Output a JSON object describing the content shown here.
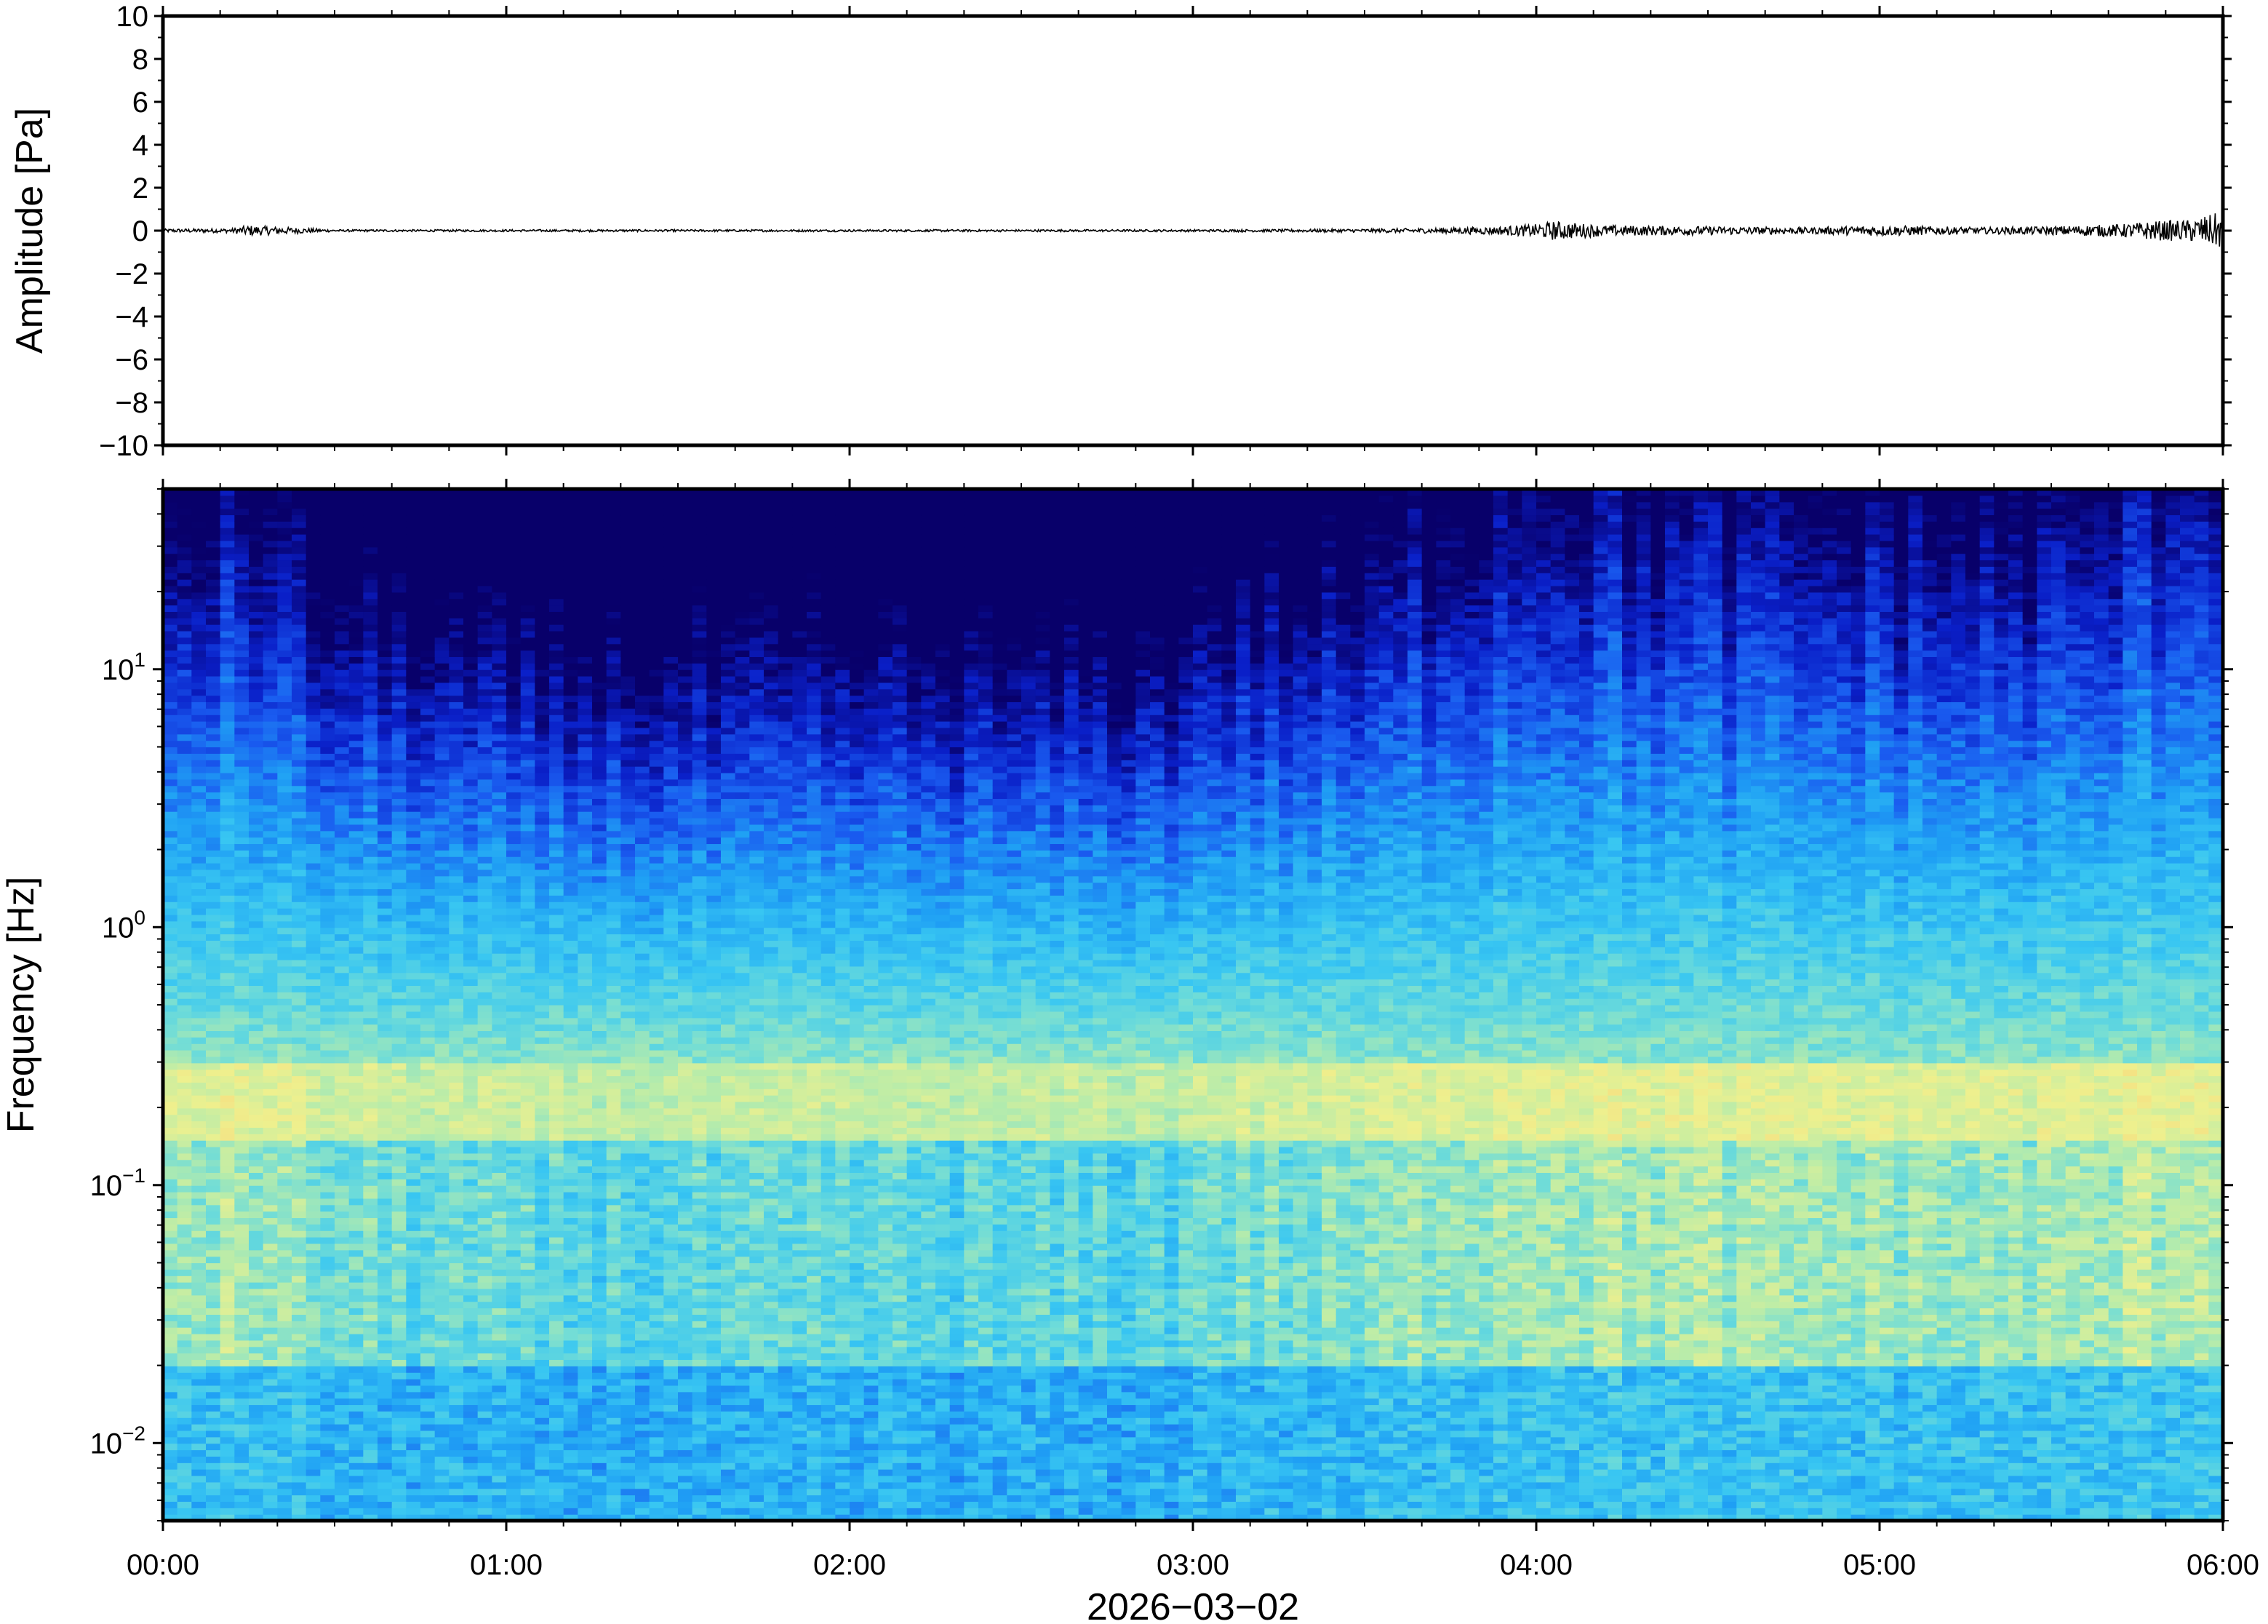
{
  "chart_data": [
    {
      "type": "line",
      "panel": "waveform",
      "ylabel": "Amplitude [Pa]",
      "ylim": [
        -10,
        10
      ],
      "yticks": [
        10,
        8,
        6,
        4,
        2,
        0,
        -2,
        -4,
        -6,
        -8,
        -10
      ],
      "ytick_labels": [
        "10",
        "8",
        "6",
        "4",
        "2",
        "0",
        "−2",
        "−4",
        "−6",
        "−8",
        "−10"
      ],
      "xlim": [
        "00:00",
        "06:00"
      ],
      "line_color": "#000000",
      "series": [
        {
          "x_hours": [
            0.0,
            0.2,
            0.25,
            0.5,
            1.0,
            1.5,
            2.0,
            2.5,
            3.0,
            3.5,
            3.7,
            3.9,
            4.0,
            4.05,
            4.2,
            4.5,
            4.8,
            5.0,
            5.3,
            5.5,
            5.7,
            5.8,
            5.9,
            6.0
          ],
          "envelope": [
            0.08,
            0.1,
            0.25,
            0.05,
            0.05,
            0.05,
            0.05,
            0.05,
            0.05,
            0.08,
            0.12,
            0.2,
            0.3,
            0.45,
            0.25,
            0.2,
            0.15,
            0.25,
            0.15,
            0.2,
            0.3,
            0.45,
            0.5,
            0.9
          ]
        }
      ]
    },
    {
      "type": "heatmap",
      "panel": "spectrogram",
      "ylabel": "Frequency [Hz]",
      "yscale": "log",
      "ylim": [
        0.005,
        50
      ],
      "yticks": [
        0.01,
        0.1,
        1,
        10
      ],
      "ytick_labels": [
        {
          "base": "10",
          "exp": "−2"
        },
        {
          "base": "10",
          "exp": "−1"
        },
        {
          "base": "10",
          "exp": "0"
        },
        {
          "base": "10",
          "exp": "1"
        }
      ],
      "xlabel": "2026−03−02",
      "xlim": [
        "00:00",
        "06:00"
      ],
      "xtick_labels": [
        "00:00",
        "01:00",
        "02:00",
        "03:00",
        "04:00",
        "05:00",
        "06:00"
      ],
      "colormap": [
        "#08006a",
        "#0a1fc8",
        "#1a5cf0",
        "#1fa0f4",
        "#38c6f2",
        "#6fdcd8",
        "#b8ecaa",
        "#eef08e",
        "#fbd278",
        "#fba95f"
      ],
      "activity_profile": {
        "hours": [
          0.0,
          0.25,
          0.5,
          1.0,
          1.5,
          2.0,
          2.5,
          2.95,
          3.0,
          3.5,
          3.7,
          4.0,
          4.3,
          4.6,
          5.0,
          5.3,
          5.6,
          5.8,
          6.0
        ],
        "level": [
          0.7,
          0.8,
          0.5,
          0.35,
          0.3,
          0.35,
          0.3,
          0.3,
          0.5,
          0.55,
          0.75,
          0.85,
          0.8,
          0.75,
          0.75,
          0.7,
          0.75,
          0.9,
          1.0
        ]
      },
      "microseism_band_hz": [
        0.15,
        0.3
      ]
    }
  ]
}
